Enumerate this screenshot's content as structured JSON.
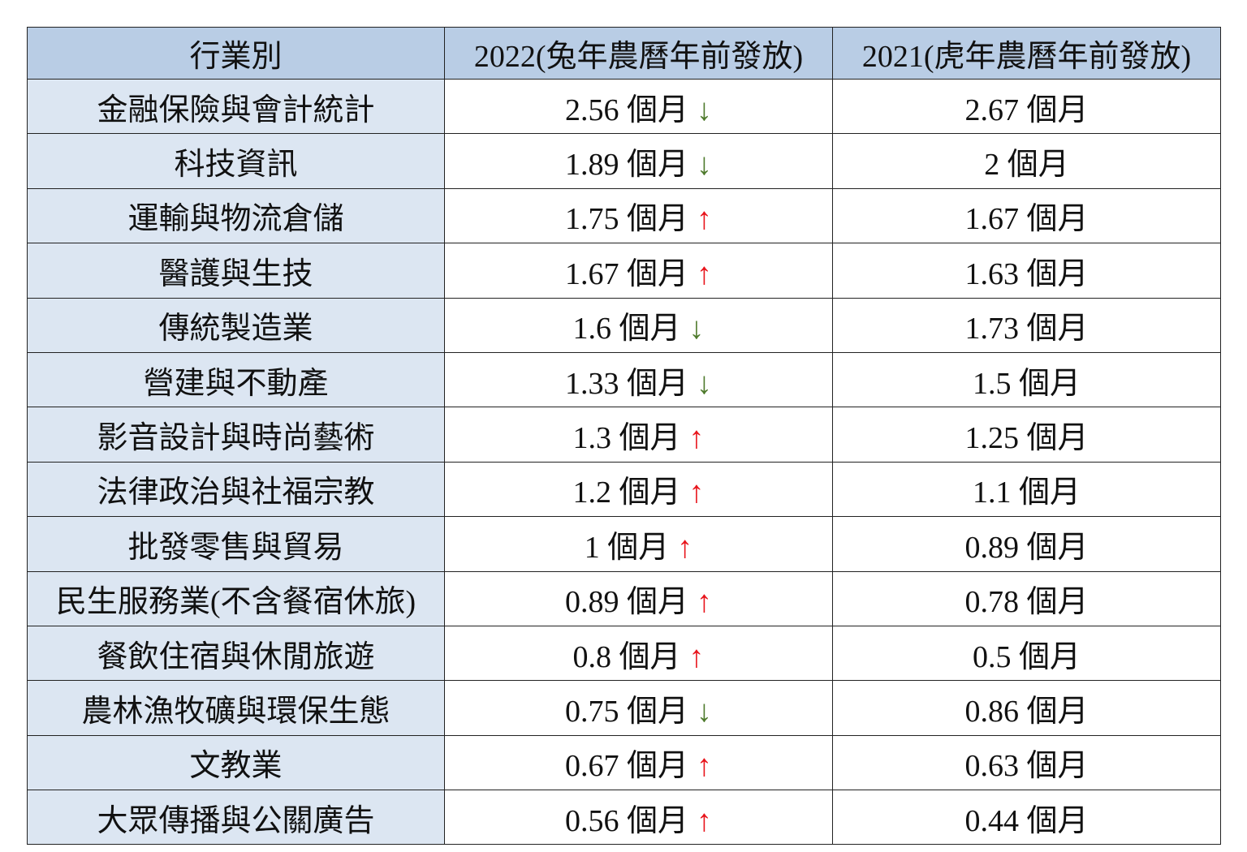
{
  "table": {
    "header": [
      "行業別",
      "2022(兔年農曆年前發放)",
      "2021(虎年農曆年前發放)"
    ],
    "rows": [
      {
        "industry": "金融保險與會計統計",
        "y2022": "2.56 個月",
        "trend": "↓",
        "trend_color": "#4e7a2c",
        "y2021": "2.67 個月"
      },
      {
        "industry": "科技資訊",
        "y2022": "1.89 個月",
        "trend": "↓",
        "trend_color": "#4e7a2c",
        "y2021": "2 個月"
      },
      {
        "industry": "運輸與物流倉儲",
        "y2022": "1.75 個月",
        "trend": "↑",
        "trend_color": "#e8141b",
        "y2021": "1.67 個月"
      },
      {
        "industry": "醫護與生技",
        "y2022": "1.67 個月",
        "trend": "↑",
        "trend_color": "#e8141b",
        "y2021": "1.63 個月"
      },
      {
        "industry": "傳統製造業",
        "y2022": "1.6 個月",
        "trend": "↓",
        "trend_color": "#4e7a2c",
        "y2021": "1.73 個月"
      },
      {
        "industry": "營建與不動產",
        "y2022": "1.33 個月",
        "trend": "↓",
        "trend_color": "#4e7a2c",
        "y2021": "1.5 個月"
      },
      {
        "industry": "影音設計與時尚藝術",
        "y2022": "1.3 個月",
        "trend": "↑",
        "trend_color": "#e8141b",
        "y2021": "1.25 個月"
      },
      {
        "industry": "法律政治與社福宗教",
        "y2022": "1.2 個月",
        "trend": "↑",
        "trend_color": "#e8141b",
        "y2021": "1.1 個月"
      },
      {
        "industry": "批發零售與貿易",
        "y2022": "1 個月",
        "trend": "↑",
        "trend_color": "#e8141b",
        "y2021": "0.89 個月"
      },
      {
        "industry": "民生服務業(不含餐宿休旅)",
        "y2022": "0.89 個月",
        "trend": "↑",
        "trend_color": "#e8141b",
        "y2021": "0.78 個月"
      },
      {
        "industry": "餐飲住宿與休閒旅遊",
        "y2022": "0.8 個月",
        "trend": "↑",
        "trend_color": "#e8141b",
        "y2021": "0.5 個月"
      },
      {
        "industry": "農林漁牧礦與環保生態",
        "y2022": "0.75 個月",
        "trend": "↓",
        "trend_color": "#4e7a2c",
        "y2021": "0.86 個月"
      },
      {
        "industry": "文教業",
        "y2022": "0.67 個月",
        "trend": "↑",
        "trend_color": "#e8141b",
        "y2021": "0.63 個月"
      },
      {
        "industry": "大眾傳播與公關廣告",
        "y2022": "0.56 個月",
        "trend": "↑",
        "trend_color": "#e8141b",
        "y2021": "0.44 個月"
      }
    ]
  }
}
